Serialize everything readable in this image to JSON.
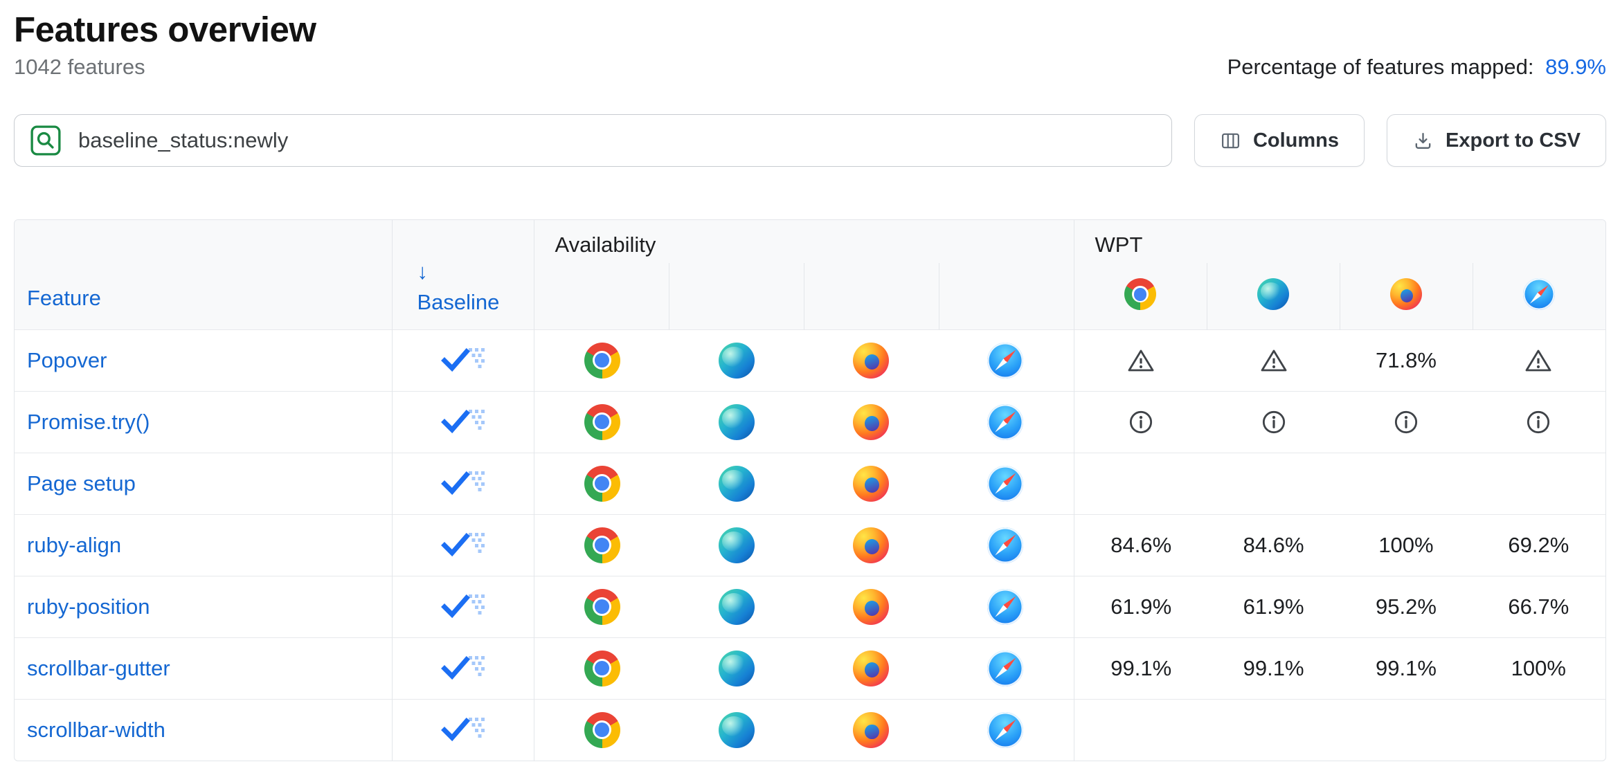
{
  "page": {
    "title": "Features overview",
    "feature_count": "1042 features",
    "mapped_label": "Percentage of features mapped:",
    "mapped_value": "89.9%"
  },
  "toolbar": {
    "search_value": "baseline_status:newly",
    "columns_label": "Columns",
    "export_label": "Export to CSV"
  },
  "table": {
    "headers": {
      "feature": "Feature",
      "sort_arrow": "↓",
      "baseline": "Baseline",
      "availability": "Availability",
      "wpt": "WPT"
    },
    "browsers": [
      "chrome",
      "edge",
      "firefox",
      "safari"
    ],
    "rows": [
      {
        "feature": "Popover",
        "baseline": "newly-available",
        "availability": [
          "chrome",
          "edge",
          "firefox",
          "safari"
        ],
        "wpt": [
          "warning-icon",
          "warning-icon",
          "71.8%",
          "warning-icon"
        ]
      },
      {
        "feature": "Promise.try()",
        "baseline": "newly-available",
        "availability": [
          "chrome",
          "edge",
          "firefox",
          "safari"
        ],
        "wpt": [
          "info-icon",
          "info-icon",
          "info-icon",
          "info-icon"
        ]
      },
      {
        "feature": "Page setup",
        "baseline": "newly-available",
        "availability": [
          "chrome",
          "edge",
          "firefox",
          "safari"
        ],
        "wpt": [
          "",
          "",
          "",
          ""
        ]
      },
      {
        "feature": "ruby-align",
        "baseline": "newly-available",
        "availability": [
          "chrome",
          "edge",
          "firefox",
          "safari"
        ],
        "wpt": [
          "84.6%",
          "84.6%",
          "100%",
          "69.2%"
        ]
      },
      {
        "feature": "ruby-position",
        "baseline": "newly-available",
        "availability": [
          "chrome",
          "edge",
          "firefox",
          "safari"
        ],
        "wpt": [
          "61.9%",
          "61.9%",
          "95.2%",
          "66.7%"
        ]
      },
      {
        "feature": "scrollbar-gutter",
        "baseline": "newly-available",
        "availability": [
          "chrome",
          "edge",
          "firefox",
          "safari"
        ],
        "wpt": [
          "99.1%",
          "99.1%",
          "99.1%",
          "100%"
        ]
      },
      {
        "feature": "scrollbar-width",
        "baseline": "newly-available",
        "availability": [
          "chrome",
          "edge",
          "firefox",
          "safari"
        ],
        "wpt": [
          "",
          "",
          "",
          ""
        ]
      }
    ]
  },
  "colors": {
    "link_blue": "#1467d2",
    "search_icon_green": "#1a8a43",
    "header_bg": "#f8f9fa",
    "border": "#e3e6ea",
    "baseline_check_blue": "#1b6ef3",
    "baseline_dots_blue": "#a5c8fa"
  }
}
